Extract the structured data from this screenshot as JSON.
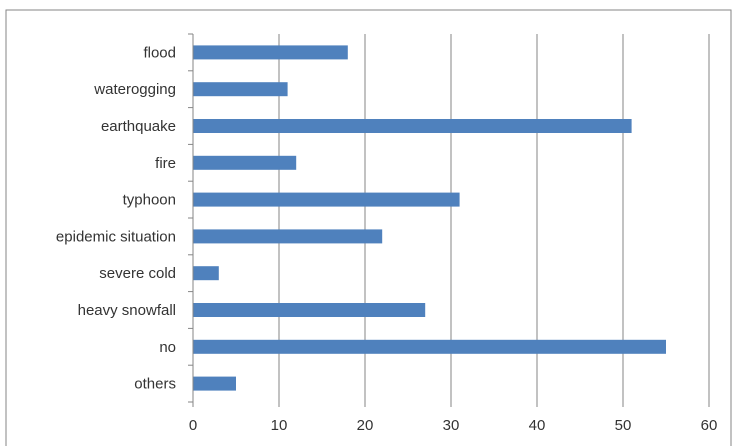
{
  "chart_data": {
    "type": "bar",
    "orientation": "horizontal",
    "categories": [
      "flood",
      "waterogging",
      "earthquake",
      "fire",
      "typhoon",
      "epidemic situation",
      "severe cold",
      "heavy snowfall",
      "no",
      "others"
    ],
    "values": [
      18,
      11,
      51,
      12,
      31,
      22,
      3,
      27,
      55,
      5
    ],
    "title": "",
    "xlabel": "",
    "ylabel": "",
    "xlim": [
      0,
      60
    ],
    "xticks": [
      0,
      10,
      20,
      30,
      40,
      50,
      60
    ],
    "grid": "vertical",
    "legend": "none",
    "bar_color": "#4f81bd",
    "grid_color": "#868686",
    "frame_color": "#868686"
  }
}
